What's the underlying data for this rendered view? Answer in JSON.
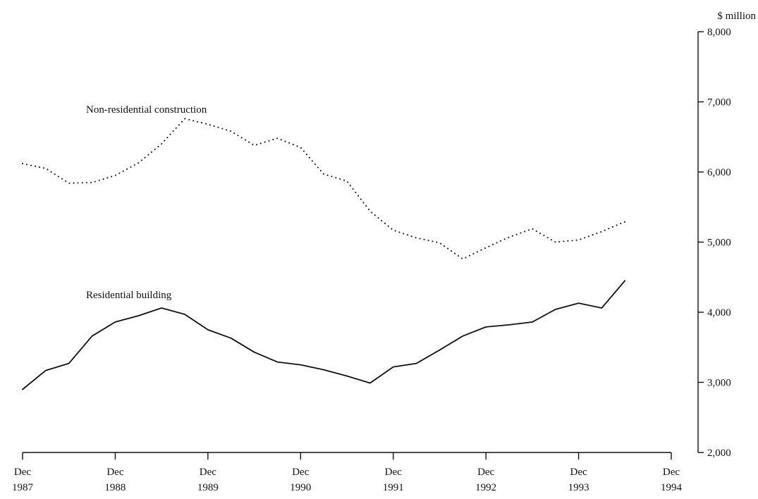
{
  "chart_data": {
    "type": "line",
    "title": "",
    "xlabel": "",
    "ylabel": "$ million",
    "ylim": [
      2000,
      8000
    ],
    "xlim": [
      "Dec 1987",
      "Dec 1994"
    ],
    "x_ticks": [
      {
        "month": "Dec",
        "year": "1987"
      },
      {
        "month": "Dec",
        "year": "1988"
      },
      {
        "month": "Dec",
        "year": "1989"
      },
      {
        "month": "Dec",
        "year": "1990"
      },
      {
        "month": "Dec",
        "year": "1991"
      },
      {
        "month": "Dec",
        "year": "1992"
      },
      {
        "month": "Dec",
        "year": "1993"
      },
      {
        "month": "Dec",
        "year": "1994"
      }
    ],
    "y_ticks": [
      "2,000",
      "3,000",
      "4,000",
      "5,000",
      "6,000",
      "7,000",
      "8,000"
    ],
    "y_tick_values": [
      2000,
      3000,
      4000,
      5000,
      6000,
      7000,
      8000
    ],
    "grid": false,
    "x": [
      "Dec 1987",
      "Mar 1988",
      "Jun 1988",
      "Sep 1988",
      "Dec 1988",
      "Mar 1989",
      "Jun 1989",
      "Sep 1989",
      "Dec 1989",
      "Mar 1990",
      "Jun 1990",
      "Sep 1990",
      "Dec 1990",
      "Mar 1991",
      "Jun 1991",
      "Sep 1991",
      "Dec 1991",
      "Mar 1992",
      "Jun 1992",
      "Sep 1992",
      "Dec 1992",
      "Mar 1993",
      "Jun 1993",
      "Sep 1993",
      "Dec 1993",
      "Mar 1994",
      "Jun 1994"
    ],
    "series": [
      {
        "name": "Non-residential construction",
        "line_style": "dotted",
        "values": [
          6120,
          6050,
          5840,
          5850,
          5950,
          6130,
          6400,
          6760,
          6680,
          6580,
          6380,
          6480,
          6350,
          5970,
          5870,
          5440,
          5170,
          5060,
          4990,
          4760,
          4920,
          5070,
          5190,
          5000,
          5030,
          5150,
          5290
        ]
      },
      {
        "name": "Residential building",
        "line_style": "solid",
        "values": [
          2900,
          3170,
          3270,
          3660,
          3860,
          3950,
          4060,
          3970,
          3750,
          3630,
          3430,
          3290,
          3250,
          3180,
          3090,
          2990,
          3220,
          3270,
          3460,
          3660,
          3790,
          3820,
          3860,
          4040,
          4130,
          4060,
          4450
        ]
      }
    ],
    "colors": {
      "line": "#111111",
      "axis": "#111111",
      "background": "#ffffff"
    }
  }
}
